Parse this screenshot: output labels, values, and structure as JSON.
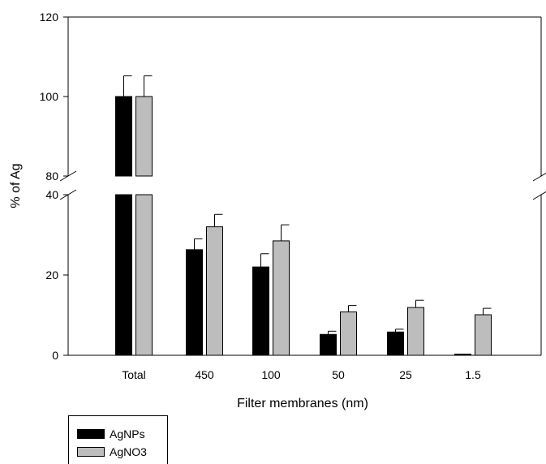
{
  "chart_data": {
    "type": "bar",
    "title": "",
    "xlabel": "Filter membranes (nm)",
    "ylabel": "% of Ag",
    "categories": [
      "Total",
      "450",
      "100",
      "50",
      "25",
      "1.5"
    ],
    "y_axis_break": {
      "lower_range": [
        0,
        40
      ],
      "upper_range": [
        80,
        120
      ]
    },
    "lower_ticks": [
      "0",
      "20",
      "40"
    ],
    "upper_ticks": [
      "80",
      "100",
      "120"
    ],
    "series": [
      {
        "name": "AgNPs",
        "color": "#000000",
        "values": [
          100,
          26.3,
          22.0,
          5.2,
          5.8,
          0.3
        ],
        "errors": [
          5.2,
          2.7,
          3.3,
          0.8,
          0.7,
          0
        ]
      },
      {
        "name": "AgNO3",
        "color": "#bdbdbd",
        "values": [
          100,
          32.0,
          28.5,
          10.8,
          11.9,
          10.1
        ],
        "errors": [
          5.2,
          3.1,
          4.0,
          1.6,
          1.8,
          1.6
        ]
      }
    ],
    "legend_position": "bottom-left"
  }
}
